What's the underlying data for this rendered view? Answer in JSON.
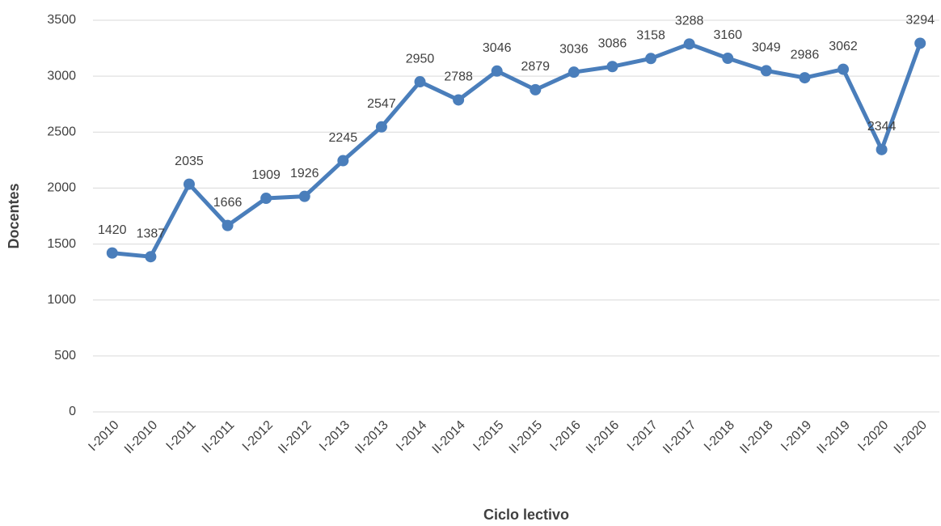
{
  "chart_data": {
    "type": "line",
    "categories": [
      "I-2010",
      "II-2010",
      "I-2011",
      "II-2011",
      "I-2012",
      "II-2012",
      "I-2013",
      "II-2013",
      "I-2014",
      "II-2014",
      "I-2015",
      "II-2015",
      "I-2016",
      "II-2016",
      "I-2017",
      "II-2017",
      "I-2018",
      "II-2018",
      "I-2019",
      "II-2019",
      "I-2020",
      "II-2020"
    ],
    "series": [
      {
        "name": "Docentes",
        "color": "#4a7ebb",
        "values": [
          1420,
          1387,
          2035,
          1666,
          1909,
          1926,
          2245,
          2547,
          2950,
          2788,
          3046,
          2879,
          3036,
          3086,
          3158,
          3288,
          3160,
          3049,
          2986,
          3062,
          2344,
          3294
        ]
      }
    ],
    "ylim": [
      0,
      3500
    ],
    "yticks": [
      0,
      500,
      1000,
      1500,
      2000,
      2500,
      3000,
      3500
    ],
    "grid": true,
    "xlabel": "Ciclo lectivo",
    "ylabel": "Docentes"
  }
}
